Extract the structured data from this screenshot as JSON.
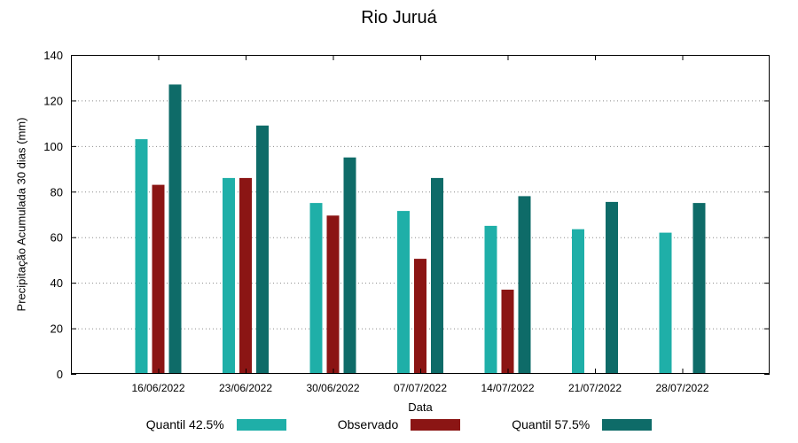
{
  "chart_data": {
    "type": "bar",
    "title": "Rio Juruá",
    "xlabel": "Data",
    "ylabel": "Precipitação Acumulada 30 dias (mm)",
    "categories": [
      "16/06/2022",
      "23/06/2022",
      "30/06/2022",
      "07/07/2022",
      "14/07/2022",
      "21/07/2022",
      "28/07/2022"
    ],
    "series": [
      {
        "name": "Quantil 42.5%",
        "color": "#1FAFA8",
        "values": [
          103,
          86,
          75,
          71.5,
          65,
          63.5,
          62
        ]
      },
      {
        "name": "Observado",
        "color": "#8B1514",
        "values": [
          83,
          86,
          69.5,
          50.5,
          37,
          null,
          null
        ]
      },
      {
        "name": "Quantil 57.5%",
        "color": "#0E6B68",
        "values": [
          127,
          109,
          95,
          86,
          78,
          75.5,
          75
        ]
      }
    ],
    "ylim": [
      0,
      140
    ],
    "ytick_step": 20,
    "grid": true,
    "grid_style": "dotted",
    "legend_position": "bottom",
    "axis_color": "#000000",
    "grid_color": "#8a8a8a"
  }
}
